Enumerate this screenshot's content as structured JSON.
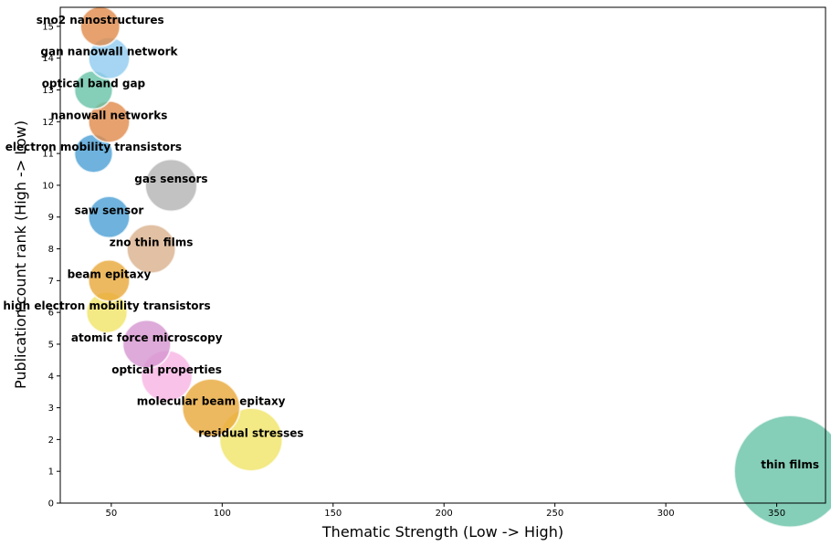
{
  "chart_data": {
    "type": "scatter",
    "title": "",
    "xlabel": "Thematic Strength (Low -> High)",
    "ylabel": "Publication count rank (High -> Low)",
    "xlim": [
      27,
      372
    ],
    "ylim": [
      0,
      15.6
    ],
    "xticks": [
      50,
      100,
      150,
      200,
      250,
      300,
      350
    ],
    "yticks": [
      0,
      1,
      2,
      3,
      4,
      5,
      6,
      7,
      8,
      9,
      10,
      11,
      12,
      13,
      14,
      15
    ],
    "grid": false,
    "points": [
      {
        "label": "thin films",
        "x": 356,
        "y": 1,
        "color": "#66c2a5"
      },
      {
        "label": "residual stresses",
        "x": 113,
        "y": 2,
        "color": "#f0e366"
      },
      {
        "label": "molecular beam epitaxy",
        "x": 95,
        "y": 3,
        "color": "#e8a838"
      },
      {
        "label": "optical properties",
        "x": 75,
        "y": 4,
        "color": "#f7b4e3"
      },
      {
        "label": "atomic force microscopy",
        "x": 66,
        "y": 5,
        "color": "#d595cf"
      },
      {
        "label": "high electron mobility transistors",
        "x": 48,
        "y": 6,
        "color": "#f0e366"
      },
      {
        "label": "beam epitaxy",
        "x": 49,
        "y": 7,
        "color": "#e8a838"
      },
      {
        "label": "zno thin films",
        "x": 68,
        "y": 8,
        "color": "#d9b08c"
      },
      {
        "label": "saw sensor",
        "x": 49,
        "y": 9,
        "color": "#4a9fd4"
      },
      {
        "label": "gas sensors",
        "x": 77,
        "y": 10,
        "color": "#b3b3b3"
      },
      {
        "label": "electron mobility transistors",
        "x": 42,
        "y": 11,
        "color": "#4a9fd4"
      },
      {
        "label": "nanowall networks",
        "x": 49,
        "y": 12,
        "color": "#e08a4a"
      },
      {
        "label": "optical band gap",
        "x": 42,
        "y": 13,
        "color": "#66c2a5"
      },
      {
        "label": "gan nanowall network",
        "x": 49,
        "y": 14,
        "color": "#8ecbf0"
      },
      {
        "label": "sno2 nanostructures",
        "x": 45,
        "y": 15,
        "color": "#e08a4a"
      }
    ]
  }
}
